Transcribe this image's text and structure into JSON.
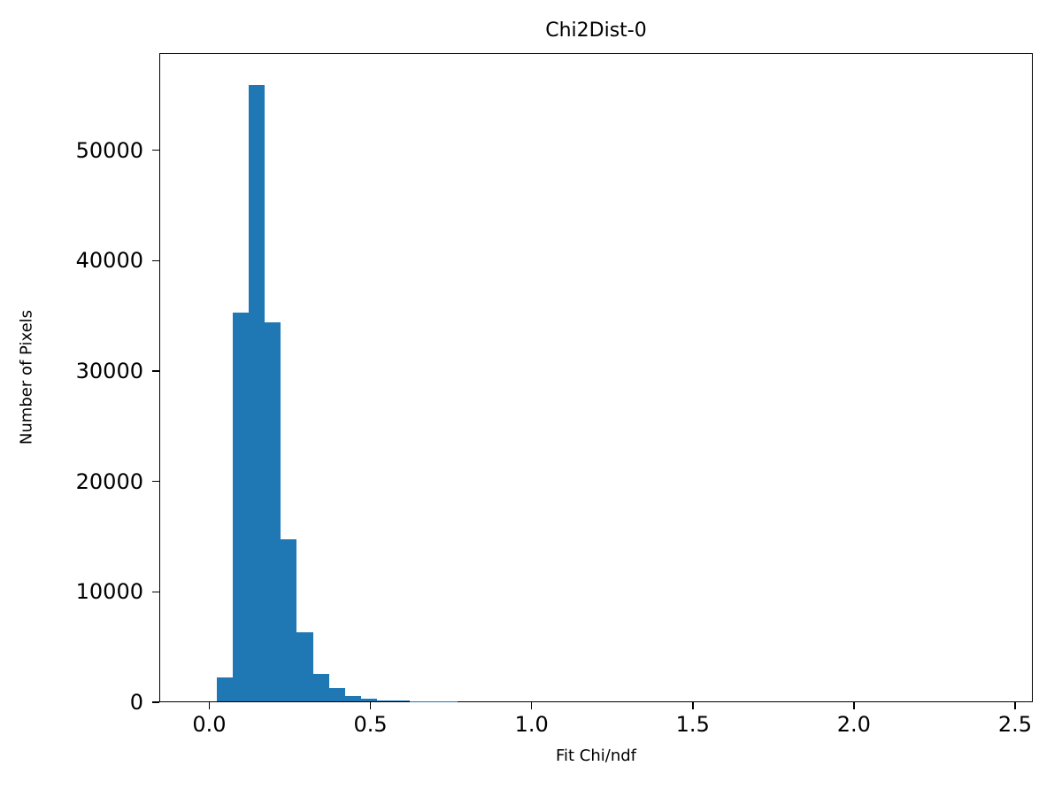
{
  "chart_data": {
    "type": "bar",
    "subtype": "histogram",
    "title": "Chi2Dist-0",
    "xlabel": "Fit Chi/ndf",
    "ylabel": "Number of Pixels",
    "bar_color": "#1f77b4",
    "grid": false,
    "legend": null,
    "xlim": [
      -0.155,
      2.555
    ],
    "ylim": [
      0,
      58800
    ],
    "x_ticks": [
      0.0,
      0.5,
      1.0,
      1.5,
      2.0,
      2.5
    ],
    "x_tick_labels": [
      "0.0",
      "0.5",
      "1.0",
      "1.5",
      "2.0",
      "2.5"
    ],
    "y_ticks": [
      0,
      10000,
      20000,
      30000,
      40000,
      50000
    ],
    "y_tick_labels": [
      "0",
      "10000",
      "20000",
      "30000",
      "40000",
      "50000"
    ],
    "bin_start": 0.02,
    "bin_width": 0.05,
    "counts": [
      2200,
      35300,
      56000,
      34400,
      14700,
      6300,
      2500,
      1200,
      450,
      250,
      120,
      60,
      30,
      15,
      8,
      5,
      3,
      2,
      1,
      1,
      0,
      0,
      0,
      0,
      0,
      0,
      0,
      0,
      0,
      0,
      0,
      0,
      0,
      0,
      0,
      0,
      0,
      0,
      0,
      0,
      0,
      0,
      0,
      0,
      0,
      0,
      0,
      0,
      0,
      1
    ]
  }
}
